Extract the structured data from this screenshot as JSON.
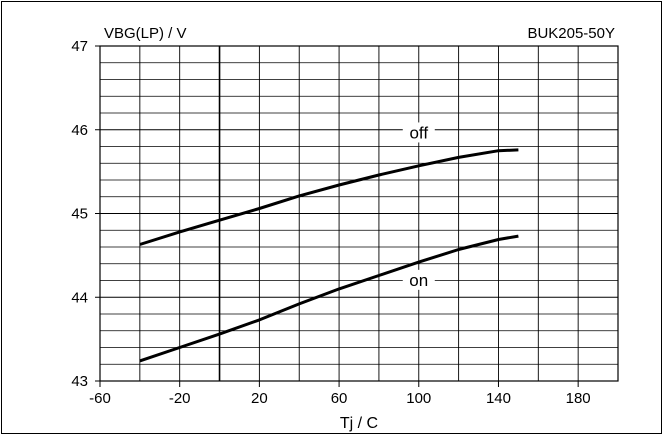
{
  "chart_data": {
    "type": "line",
    "title": "",
    "ylabel": "VBG(LP) / V",
    "xlabel": "Tj / C",
    "part_number": "BUK205-50Y",
    "xlim": [
      -60,
      200
    ],
    "ylim": [
      43,
      47
    ],
    "x_ticks": [
      -60,
      -20,
      20,
      60,
      100,
      140,
      180
    ],
    "y_ticks": [
      43,
      44,
      45,
      46,
      47
    ],
    "x_grid_step": 20,
    "y_grid_step": 0.2,
    "grid": true,
    "series": [
      {
        "name": "off",
        "x": [
          -40,
          -20,
          0,
          20,
          40,
          60,
          80,
          100,
          120,
          140,
          150
        ],
        "y": [
          44.63,
          44.78,
          44.92,
          45.06,
          45.21,
          45.34,
          45.46,
          45.57,
          45.67,
          45.75,
          45.76
        ]
      },
      {
        "name": "on",
        "x": [
          -40,
          -20,
          0,
          20,
          40,
          60,
          80,
          100,
          120,
          140,
          150
        ],
        "y": [
          43.24,
          43.4,
          43.56,
          43.73,
          43.92,
          44.1,
          44.26,
          44.42,
          44.57,
          44.69,
          44.73
        ]
      }
    ],
    "series_label_anchor": [
      {
        "name": "off",
        "x": 100,
        "y": 45.92
      },
      {
        "name": "on",
        "x": 100,
        "y": 44.16
      }
    ]
  }
}
